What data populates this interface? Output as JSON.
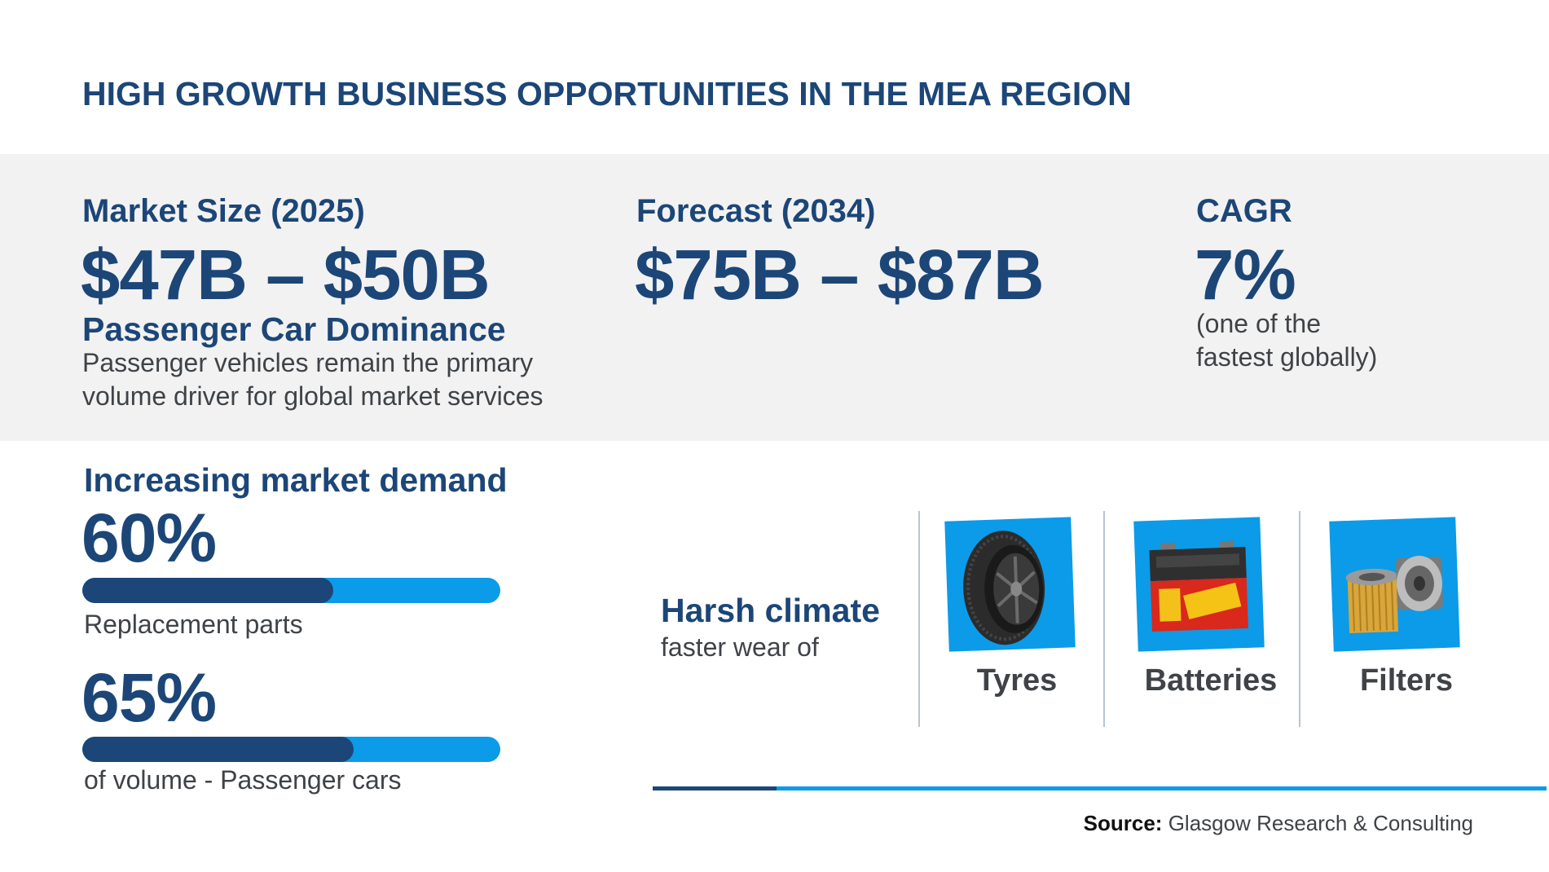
{
  "title": "HIGH GROWTH BUSINESS OPPORTUNITIES IN THE MEA REGION",
  "market_size": {
    "label": "Market Size (2025)",
    "value": "$47B – $50B"
  },
  "forecast": {
    "label": "Forecast (2034)",
    "value": "$75B – $87B"
  },
  "cagr": {
    "label": "CAGR",
    "value": "7%",
    "note_line1": "(one of the",
    "note_line2": "fastest globally)"
  },
  "dominance": {
    "heading": "Passenger Car Dominance",
    "line1": "Passenger vehicles remain the primary",
    "line2": "volume driver for global market services"
  },
  "demand": {
    "heading": "Increasing market demand",
    "items": [
      {
        "value": "60%",
        "fraction": 0.6,
        "caption": "Replacement parts"
      },
      {
        "value": "65%",
        "fraction": 0.65,
        "caption": "of volume - Passenger cars"
      }
    ]
  },
  "climate": {
    "heading": "Harsh climate",
    "subtext": "faster wear of",
    "items": [
      {
        "label": "Tyres",
        "icon": "tyre-icon"
      },
      {
        "label": "Batteries",
        "icon": "battery-icon"
      },
      {
        "label": "Filters",
        "icon": "filter-icon"
      }
    ]
  },
  "source": {
    "label": "Source:",
    "text": "Glasgow Research & Consulting"
  },
  "colors": {
    "navy": "#1c4677",
    "accent": "#0b9be8",
    "band": "#f2f2f2",
    "text": "#3f4347"
  }
}
